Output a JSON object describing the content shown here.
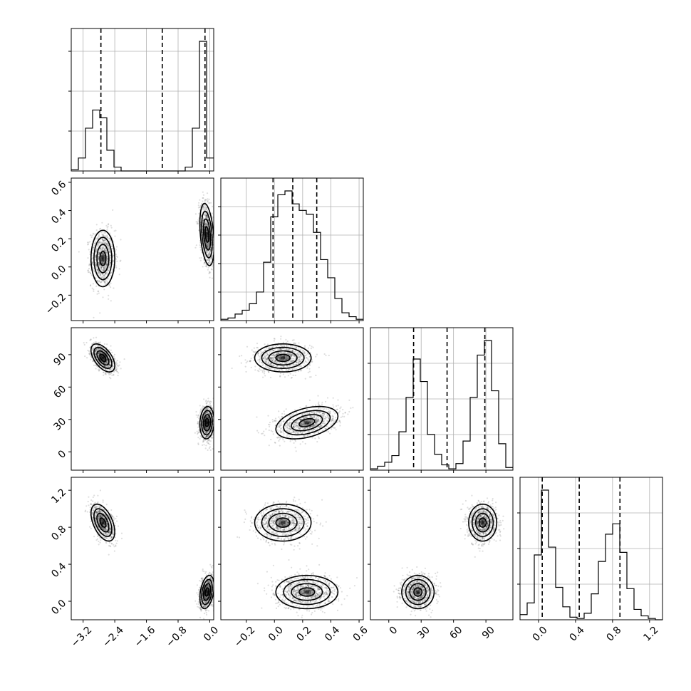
{
  "chart_data": {
    "type": "corner",
    "parameters": [
      {
        "id": "p0",
        "range": [
          -3.5,
          0.1
        ],
        "ticks": [
          -3.2,
          -2.4,
          -1.6,
          -0.8,
          0.0
        ],
        "tick_labels": [
          "−3.2",
          "−2.4",
          "−1.6",
          "−0.8",
          "0.0"
        ],
        "quantiles": [
          -2.75,
          -1.2,
          -0.12
        ],
        "hist_edges": [
          -3.5,
          -3.32,
          -3.14,
          -2.96,
          -2.78,
          -2.6,
          -2.42,
          -2.24,
          -2.06,
          -1.88,
          -1.7,
          -1.52,
          -1.34,
          -1.16,
          -0.98,
          -0.8,
          -0.62,
          -0.44,
          -0.26,
          -0.08,
          0.1
        ],
        "hist_heights": [
          0.01,
          0.1,
          0.33,
          0.47,
          0.41,
          0.16,
          0.03,
          0,
          0,
          0,
          0,
          0,
          0,
          0,
          0,
          0,
          0.03,
          0.33,
          1.0,
          0.1
        ],
        "hist_ytick_fracs": [
          0.28,
          0.56,
          0.84
        ]
      },
      {
        "id": "p1",
        "range": [
          -0.38,
          0.63
        ],
        "ticks": [
          -0.2,
          0.0,
          0.2,
          0.4,
          0.6
        ],
        "tick_labels": [
          "−0.2",
          "0.0",
          "0.2",
          "0.4",
          "0.6"
        ],
        "quantiles": [
          -0.01,
          0.13,
          0.3
        ],
        "hist_edges": [
          -0.38,
          -0.3295,
          -0.279,
          -0.2285,
          -0.178,
          -0.1275,
          -0.077,
          -0.0265,
          0.024,
          0.0745,
          0.125,
          0.1755,
          0.226,
          0.2765,
          0.327,
          0.3775,
          0.428,
          0.4785,
          0.529,
          0.5795,
          0.63
        ],
        "hist_heights": [
          0.01,
          0.02,
          0.05,
          0.08,
          0.13,
          0.22,
          0.45,
          0.8,
          0.97,
          1.0,
          0.9,
          0.85,
          0.82,
          0.68,
          0.47,
          0.33,
          0.17,
          0.06,
          0.03,
          0.01
        ],
        "hist_ytick_fracs": [
          0.2,
          0.4,
          0.6,
          0.8
        ]
      },
      {
        "id": "p2",
        "range": [
          -17,
          115
        ],
        "ticks": [
          0,
          30,
          60,
          90
        ],
        "tick_labels": [
          "0",
          "30",
          "60",
          "90"
        ],
        "quantiles": [
          23,
          54,
          89
        ],
        "hist_edges": [
          -17,
          -10.4,
          -3.8,
          2.8,
          9.4,
          16,
          22.6,
          29.2,
          35.8,
          42.4,
          49,
          55.6,
          62.2,
          68.8,
          75.4,
          82,
          88.6,
          95.2,
          101.8,
          108.4,
          115
        ],
        "hist_heights": [
          0.01,
          0.03,
          0.06,
          0.11,
          0.29,
          0.55,
          0.84,
          0.67,
          0.27,
          0.12,
          0.04,
          0.01,
          0.05,
          0.22,
          0.55,
          0.87,
          0.98,
          0.6,
          0.2,
          0.02
        ],
        "hist_ytick_fracs": [
          0.25,
          0.5,
          0.75
        ]
      },
      {
        "id": "p3",
        "range": [
          -0.2,
          1.34
        ],
        "ticks": [
          0.0,
          0.4,
          0.8,
          1.2
        ],
        "tick_labels": [
          "0.0",
          "0.4",
          "0.8",
          "1.2"
        ],
        "quantiles": [
          0.04,
          0.44,
          0.88
        ],
        "hist_edges": [
          -0.2,
          -0.123,
          -0.046,
          0.031,
          0.108,
          0.185,
          0.262,
          0.339,
          0.416,
          0.493,
          0.57,
          0.647,
          0.724,
          0.801,
          0.878,
          0.955,
          1.032,
          1.109,
          1.186,
          1.263,
          1.34
        ],
        "hist_heights": [
          0.04,
          0.13,
          0.5,
          1.0,
          0.56,
          0.25,
          0.1,
          0.02,
          0.01,
          0.05,
          0.2,
          0.45,
          0.66,
          0.74,
          0.52,
          0.24,
          0.08,
          0.03,
          0.01,
          0.0
        ],
        "hist_ytick_fracs": [
          0.25,
          0.5,
          0.75
        ]
      }
    ],
    "modes": [
      {
        "weight": 0.52,
        "mean": [
          -2.7,
          0.06,
          87,
          0.85
        ],
        "sd": [
          0.15,
          0.1,
          6.5,
          0.1
        ]
      },
      {
        "weight": 0.48,
        "mean": [
          -0.07,
          0.23,
          27,
          0.1
        ],
        "sd": [
          0.09,
          0.11,
          7.5,
          0.09
        ]
      }
    ],
    "correlations": {
      "0-1": [
        0.0,
        -0.35
      ],
      "0-2": [
        -0.55,
        0.1
      ],
      "0-3": [
        -0.5,
        0.35
      ],
      "1-2": [
        0.0,
        0.4
      ],
      "1-3": [
        0.0,
        0.0
      ],
      "2-3": [
        0.0,
        0.0
      ]
    },
    "contour_levels_sigma": [
      0.5,
      1.0,
      1.5,
      2.0
    ],
    "n_scatter_per_mode": 900,
    "hist_grid": true,
    "title": "",
    "xlabel": "",
    "ylabel": ""
  }
}
